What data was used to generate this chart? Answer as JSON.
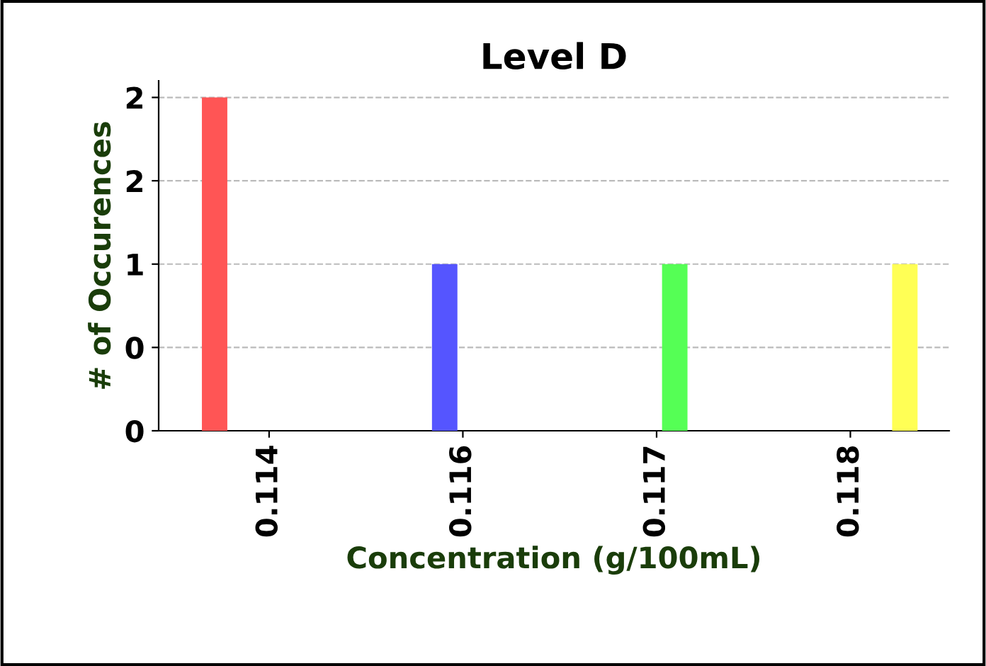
{
  "chart_data": {
    "type": "bar",
    "title": "Level D",
    "xlabel": "Concentration (g/100mL)",
    "ylabel": "# of Occurences",
    "categories": [
      "0.114",
      "0.116",
      "0.117",
      "0.118"
    ],
    "series": [
      {
        "color": "#ff5555",
        "values": [
          2,
          0,
          0,
          0
        ]
      },
      {
        "color": "#5555ff",
        "values": [
          0,
          1,
          0,
          0
        ]
      },
      {
        "color": "#55ff55",
        "values": [
          0,
          0,
          1,
          0
        ]
      },
      {
        "color": "#ffff55",
        "values": [
          0,
          0,
          0,
          1
        ]
      }
    ],
    "ylim": [
      0,
      2.1
    ],
    "yticks": [
      0,
      {
        "value": 0.5,
        "label": "0"
      },
      1,
      {
        "value": 1.5,
        "label": "2"
      },
      2
    ],
    "grid": "y"
  }
}
